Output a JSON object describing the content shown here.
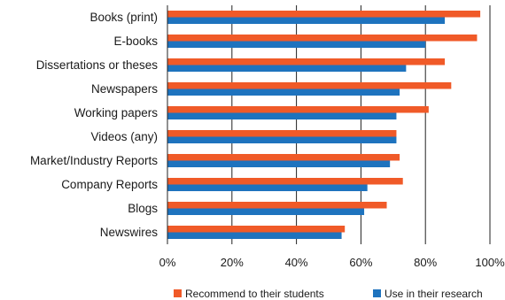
{
  "chart_data": {
    "type": "bar",
    "orientation": "horizontal",
    "categories": [
      "Books (print)",
      "E-books",
      "Dissertations or theses",
      "Newspapers",
      "Working papers",
      "Videos (any)",
      "Market/Industry Reports",
      "Company Reports",
      "Blogs",
      "Newswires"
    ],
    "series": [
      {
        "name": "Recommend to their students",
        "color": "#f05a28",
        "values": [
          97,
          96,
          86,
          88,
          81,
          71,
          72,
          73,
          68,
          55
        ]
      },
      {
        "name": "Use in their research",
        "color": "#1e73be",
        "values": [
          86,
          80,
          74,
          72,
          71,
          71,
          69,
          62,
          61,
          54
        ]
      }
    ],
    "x_ticks": [
      "0%",
      "20%",
      "40%",
      "60%",
      "80%",
      "100%"
    ],
    "xlim": [
      0,
      100
    ],
    "grid": "vertical",
    "legend_position": "bottom",
    "title": "",
    "xlabel": "",
    "ylabel": ""
  }
}
